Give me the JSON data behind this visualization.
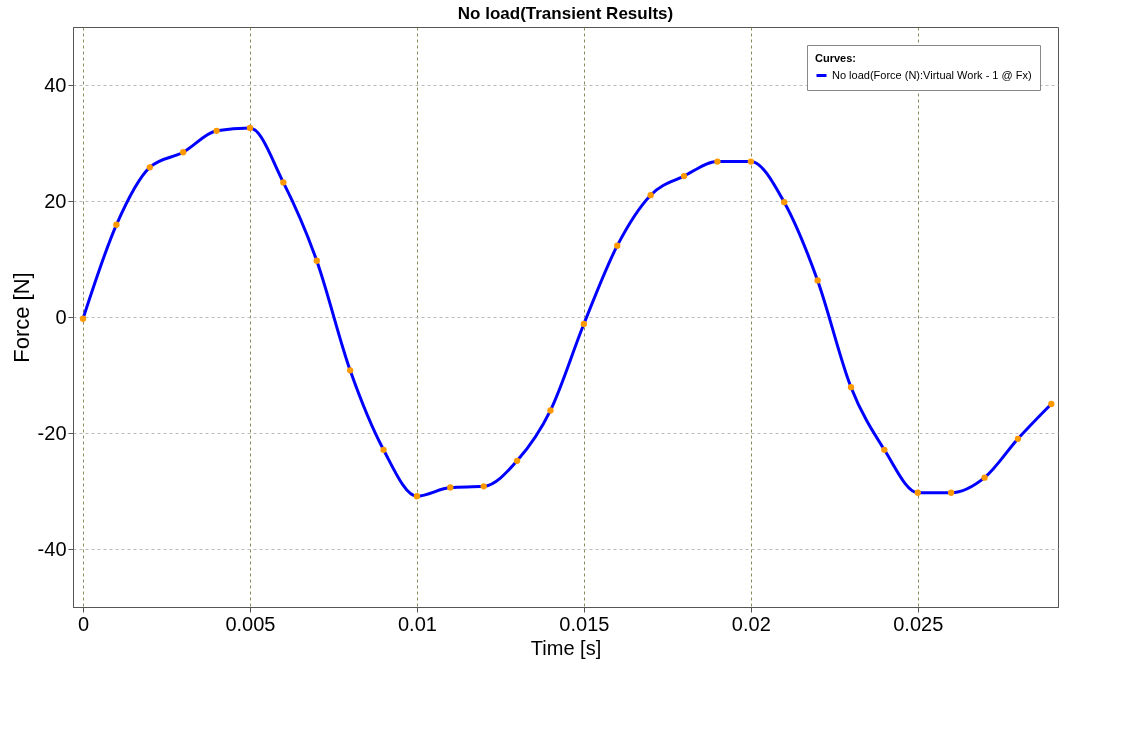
{
  "chart_data": {
    "type": "line",
    "title": "No load(Transient Results)",
    "xlabel": "Time [s]",
    "ylabel": "Force [N]",
    "legend_title": "Curves:",
    "x": [
      0,
      0.001,
      0.002,
      0.003,
      0.004,
      0.005,
      0.006,
      0.007,
      0.008,
      0.009,
      0.01,
      0.011,
      0.012,
      0.013,
      0.014,
      0.015,
      0.016,
      0.017,
      0.018,
      0.019,
      0.02,
      0.021,
      0.022,
      0.023,
      0.024,
      0.025,
      0.026,
      0.027,
      0.028,
      0.029
    ],
    "series": [
      {
        "name": "No load(Force (N):Virtual Work - 1 @ Fx)",
        "color": "#0000ff",
        "values": [
          -0.3,
          15.9,
          25.8,
          28.4,
          32.1,
          32.6,
          23.2,
          9.7,
          -9.2,
          -22.9,
          -30.9,
          -29.4,
          -29.2,
          -24.8,
          -16.1,
          -1.2,
          12.3,
          21.0,
          24.3,
          26.8,
          26.8,
          19.8,
          6.3,
          -12.1,
          -22.9,
          -30.3,
          -30.3,
          -27.7,
          -21.0,
          -15.0
        ]
      }
    ],
    "xlim": [
      -0.0003,
      0.0292
    ],
    "ylim": [
      -50,
      50
    ],
    "xticks": [
      0,
      0.005,
      0.01,
      0.015,
      0.02,
      0.025
    ],
    "yticks": [
      -40,
      -20,
      0,
      20,
      40
    ],
    "grid": true,
    "legend": "top right",
    "marker": "circle",
    "line_style": "solid"
  }
}
